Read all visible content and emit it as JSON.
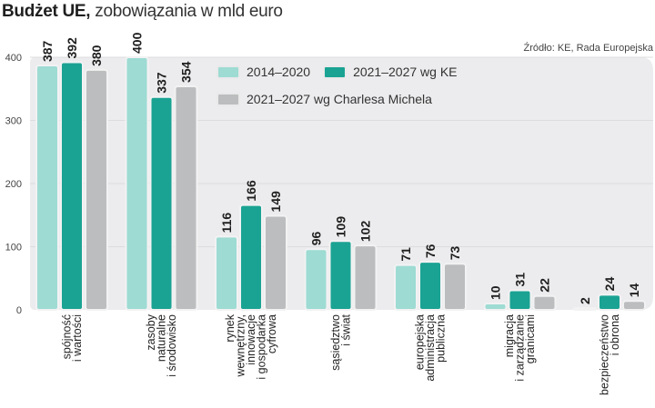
{
  "header": {
    "title_bold": "Budżet UE,",
    "title_rest": " zobowiązania w mld euro",
    "source": "Źródło: KE, Rada Europejska"
  },
  "colors": {
    "s1": "#9ddbd3",
    "s2": "#1aa393",
    "s3": "#bcbdbf",
    "panel": "#ececee",
    "grid": "#dcdcde"
  },
  "chart_data": {
    "type": "bar",
    "title": "Budżet UE, zobowiązania w mld euro",
    "xlabel": "",
    "ylabel": "",
    "ylim": [
      0,
      400
    ],
    "yticks": [
      0,
      100,
      200,
      300,
      400
    ],
    "grid": true,
    "legend_position": "top-center",
    "categories": [
      [
        "spójność",
        "i wartości"
      ],
      [
        "zasoby",
        "naturalne",
        "i środowisko"
      ],
      [
        "rynek",
        "wewnętrzny,",
        "innowacje",
        "i gospodarka",
        "cyfrowa"
      ],
      [
        "sąsiedztwo",
        "i świat"
      ],
      [
        "europejska",
        "administracja",
        "publiczna"
      ],
      [
        "migracja",
        "i zarządzanie",
        "granicami"
      ],
      [
        "bezpieczeństwo",
        "i obrona"
      ]
    ],
    "series": [
      {
        "name": "2014–2020",
        "values": [
          387,
          400,
          116,
          96,
          71,
          10,
          2
        ]
      },
      {
        "name": "2021–2027 wg KE",
        "values": [
          392,
          337,
          166,
          109,
          76,
          31,
          24
        ]
      },
      {
        "name": "2021–2027 wg Charlesa Michela",
        "values": [
          380,
          354,
          149,
          102,
          73,
          22,
          14
        ]
      }
    ]
  }
}
